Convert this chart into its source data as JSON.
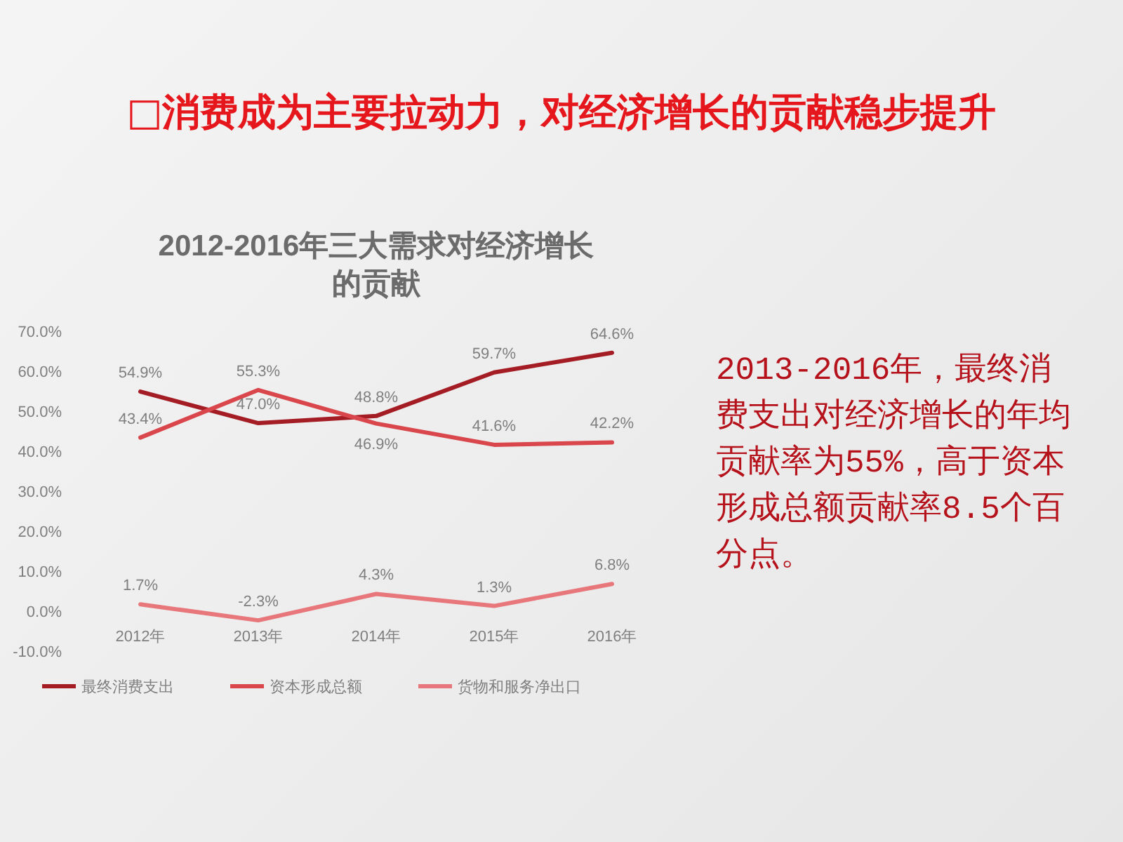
{
  "chart_data": {
    "type": "line",
    "title": "2012-2016年三大需求对经济增长的贡献",
    "categories": [
      "2012年",
      "2013年",
      "2014年",
      "2015年",
      "2016年"
    ],
    "series": [
      {
        "name": "最终消费支出",
        "color": "#a51d24",
        "values": [
          54.9,
          47.0,
          48.8,
          59.7,
          64.6
        ],
        "value_labels": [
          "54.9%",
          "47.0%",
          "48.8%",
          "59.7%",
          "64.6%"
        ]
      },
      {
        "name": "资本形成总额",
        "color": "#d9464c",
        "values": [
          43.4,
          55.3,
          46.9,
          41.6,
          42.2
        ],
        "value_labels": [
          "43.4%",
          "55.3%",
          "46.9%",
          "41.6%",
          "42.2%"
        ]
      },
      {
        "name": "货物和服务净出口",
        "color": "#e8777b",
        "values": [
          1.7,
          -2.3,
          4.3,
          1.3,
          6.8
        ],
        "value_labels": [
          "1.7%",
          "-2.3%",
          "4.3%",
          "1.3%",
          "6.8%"
        ]
      }
    ],
    "ylim": [
      -10,
      70
    ],
    "yticks": [
      {
        "value": -10,
        "label": "-10.0%"
      },
      {
        "value": 0,
        "label": "0.0%"
      },
      {
        "value": 10,
        "label": "10.0%"
      },
      {
        "value": 20,
        "label": "20.0%"
      },
      {
        "value": 30,
        "label": "30.0%"
      },
      {
        "value": 40,
        "label": "40.0%"
      },
      {
        "value": 50,
        "label": "50.0%"
      },
      {
        "value": 60,
        "label": "60.0%"
      },
      {
        "value": 70,
        "label": "70.0%"
      }
    ],
    "legend": "bottom",
    "annotations": [
      "□消费成为主要拉动力，对经济增长的贡献稳步提升",
      "2013-2016年，最终消费支出对经济增长的年均贡献率为55%，高于资本形成总额贡献率8.5个百分点。"
    ]
  }
}
